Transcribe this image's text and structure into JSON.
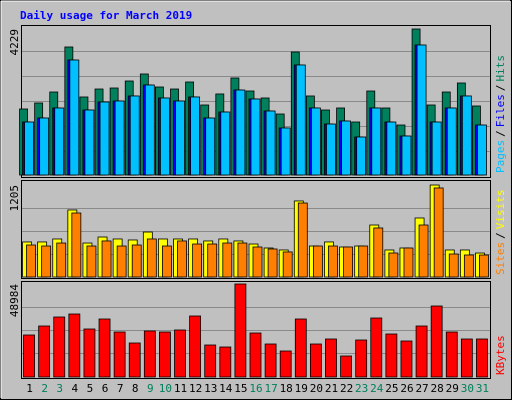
{
  "chart_data": [
    {
      "type": "bar",
      "title": "Daily usage for March 2019",
      "legend_separator": "/",
      "ylim": [
        0,
        4229
      ],
      "yticks": [
        4229
      ],
      "series": [
        {
          "name": "Hits",
          "color": "#00805c",
          "values": [
            1912,
            2086,
            2404,
            3708,
            2260,
            2491,
            2520,
            2723,
            2926,
            2549,
            2491,
            2694,
            2028,
            2347,
            2810,
            2433,
            2231,
            1767,
            3563,
            2289,
            1883,
            1941,
            1535,
            2433,
            1941,
            1448,
            4229,
            2028,
            2404,
            2665,
            1999
          ]
        },
        {
          "name": "Files",
          "color": "#0000ff",
          "values": [
            1535,
            1651,
            1941,
            3331,
            1883,
            2115,
            2144,
            2289,
            2607,
            2231,
            2144,
            2260,
            1651,
            1825,
            2462,
            2202,
            1854,
            1362,
            3187,
            1941,
            1477,
            1564,
            1101,
            1941,
            1535,
            1130,
            3766,
            1535,
            1941,
            2289,
            1448
          ]
        },
        {
          "name": "Pages",
          "color": "#00c0ff",
          "values": [
            1535,
            1651,
            1941,
            3331,
            1883,
            2115,
            2144,
            2289,
            2607,
            2231,
            2144,
            2260,
            1651,
            1825,
            2462,
            2202,
            1854,
            1362,
            3187,
            1941,
            1477,
            1564,
            1101,
            1941,
            1535,
            1130,
            3766,
            1535,
            1941,
            2289,
            1448
          ]
        }
      ]
    },
    {
      "type": "bar",
      "legend_separator": "/",
      "ylim": [
        0,
        1205
      ],
      "yticks": [
        1205
      ],
      "series": [
        {
          "name": "Visits",
          "color": "#ffff00",
          "values": [
            459,
            459,
            498,
            878,
            445,
            524,
            498,
            485,
            589,
            498,
            498,
            498,
            472,
            498,
            472,
            432,
            380,
            354,
            996,
            406,
            459,
            393,
            406,
            681,
            354,
            380,
            773,
            1205,
            354,
            354,
            314
          ]
        },
        {
          "name": "Sites",
          "color": "#ff8000",
          "values": [
            419,
            406,
            445,
            838,
            406,
            472,
            406,
            419,
            498,
            406,
            472,
            432,
            432,
            445,
            445,
            393,
            367,
            328,
            969,
            406,
            406,
            393,
            406,
            642,
            314,
            380,
            681,
            1166,
            301,
            288,
            288
          ]
        }
      ]
    },
    {
      "type": "bar",
      "ylim": [
        0,
        48984
      ],
      "yticks": [
        48984
      ],
      "categories": [
        "1",
        "2",
        "3",
        "4",
        "5",
        "6",
        "7",
        "8",
        "9",
        "10",
        "11",
        "12",
        "13",
        "14",
        "15",
        "16",
        "17",
        "18",
        "19",
        "20",
        "21",
        "22",
        "23",
        "24",
        "25",
        "26",
        "27",
        "28",
        "29",
        "30",
        "31"
      ],
      "category_colors": [
        "#000000",
        "#00805c",
        "#00805c",
        "#000000",
        "#000000",
        "#000000",
        "#000000",
        "#000000",
        "#00805c",
        "#00805c",
        "#000000",
        "#000000",
        "#000000",
        "#000000",
        "#000000",
        "#00805c",
        "#00805c",
        "#000000",
        "#000000",
        "#000000",
        "#000000",
        "#000000",
        "#00805c",
        "#00805c",
        "#000000",
        "#000000",
        "#000000",
        "#000000",
        "#000000",
        "#00805c",
        "#00805c"
      ],
      "series": [
        {
          "name": "KBytes",
          "color": "#ff0000",
          "values": [
            22121,
            26862,
            31602,
            33182,
            25282,
            30549,
            23702,
            17908,
            24228,
            23702,
            24755,
            32129,
            16854,
            15801,
            48984,
            23175,
            17381,
            13694,
            30549,
            17381,
            20015,
            11061,
            19488,
            31075,
            22648,
            18961,
            26862,
            37396,
            23702,
            20015,
            20015
          ]
        }
      ]
    }
  ]
}
